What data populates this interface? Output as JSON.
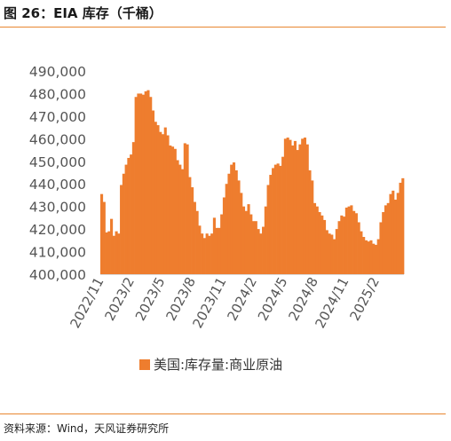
{
  "header": {
    "title": "图 26：EIA 库存（千桶）"
  },
  "footer": {
    "source": "资料来源：Wind，天风证券研究所"
  },
  "colors": {
    "bar": "#ee7d2e",
    "rule": "#e8862f",
    "axis": "#d9d9d9"
  },
  "chart_data": {
    "type": "bar",
    "title": "",
    "xlabel": "",
    "ylabel": "",
    "ylim": [
      400000,
      490000
    ],
    "yticks": [
      "400,000",
      "410,000",
      "420,000",
      "430,000",
      "440,000",
      "450,000",
      "460,000",
      "470,000",
      "480,000",
      "490,000"
    ],
    "xticks": [
      "2022/11",
      "2023/2",
      "2023/5",
      "2023/8",
      "2023/11",
      "2024/2",
      "2024/5",
      "2024/8",
      "2024/11",
      "2025/2"
    ],
    "legend": {
      "position": "bottom",
      "entries": [
        "美国:库存量:商业原油"
      ]
    },
    "series": [
      {
        "name": "美国:库存量:商业原油",
        "color": "#ee7d2e",
        "values": [
          435500,
          432000,
          418500,
          419000,
          424500,
          417000,
          419000,
          418000,
          439500,
          444500,
          448500,
          451500,
          453000,
          458500,
          478500,
          480000,
          480000,
          479500,
          481000,
          481500,
          478500,
          472500,
          467500,
          466000,
          463000,
          462000,
          465000,
          461500,
          457000,
          456500,
          455500,
          450500,
          448500,
          446500,
          458000,
          457500,
          443000,
          438500,
          432000,
          428000,
          421500,
          418000,
          416000,
          418000,
          417000,
          418000,
          425000,
          420500,
          420500,
          426500,
          434000,
          440000,
          444500,
          448500,
          449500,
          446000,
          441500,
          436000,
          430000,
          428000,
          431000,
          426500,
          423500,
          423500,
          420000,
          418000,
          421000,
          430000,
          439500,
          444000,
          447000,
          448500,
          449000,
          448000,
          452000,
          460000,
          460500,
          459500,
          457000,
          459000,
          455000,
          457500,
          460000,
          460500,
          457500,
          446000,
          441500,
          431500,
          430000,
          427500,
          426000,
          424000,
          419500,
          418000,
          417500,
          415500,
          420000,
          423500,
          426000,
          425500,
          429500,
          430000,
          430500,
          428000,
          427000,
          423000,
          419000,
          416500,
          415000,
          414500,
          415000,
          413500,
          413000,
          415500,
          423000,
          427500,
          430500,
          431500,
          435500,
          437000,
          433000,
          436000,
          440500,
          442500
        ]
      }
    ]
  }
}
